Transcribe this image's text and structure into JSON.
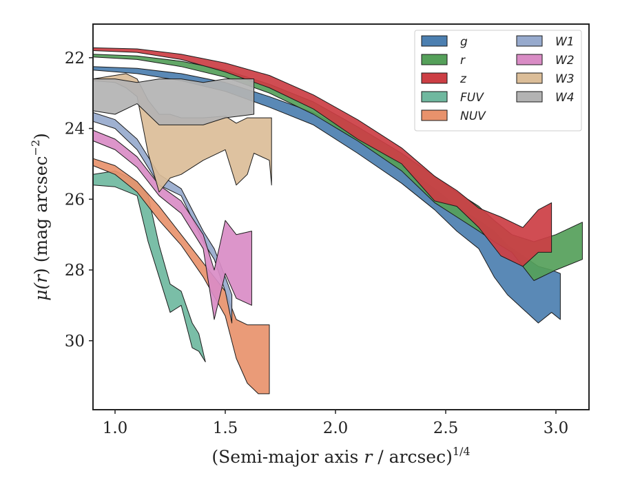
{
  "chart_data": {
    "type": "area",
    "title": "",
    "xlabel_main": "(Semi-major axis ",
    "xlabel_var": "r",
    "xlabel_tail": " / arcsec)",
    "xlabel_exp": "1/4",
    "ylabel_mu": "μ(",
    "ylabel_var": "r",
    "ylabel_rest": ") (mag arcsec",
    "ylabel_exp": "−2",
    "ylabel_close": ")",
    "xlim": [
      0.9,
      3.15
    ],
    "ylim": [
      31.95,
      21.05
    ],
    "y_inverted": true,
    "xticks": [
      1.0,
      1.5,
      2.0,
      2.5,
      3.0
    ],
    "xtick_labels": [
      "1.0",
      "1.5",
      "2.0",
      "2.5",
      "3.0"
    ],
    "yticks": [
      22,
      24,
      26,
      28,
      30
    ],
    "ytick_labels": [
      "22",
      "24",
      "26",
      "28",
      "30"
    ],
    "grid": false,
    "legend_position": "top-right",
    "legend_columns": 2,
    "series": [
      {
        "name": "g",
        "color": "#4c7fb0",
        "x": [
          0.9,
          1.1,
          1.3,
          1.5,
          1.7,
          1.9,
          2.1,
          2.3,
          2.45,
          2.55,
          2.65,
          2.72,
          2.78,
          2.85,
          2.92,
          2.98,
          3.02
        ],
        "lo": [
          22.25,
          22.3,
          22.45,
          22.7,
          23.1,
          23.55,
          24.25,
          25.05,
          25.7,
          26.2,
          26.6,
          26.9,
          27.3,
          27.6,
          27.9,
          28.0,
          28.1
        ],
        "hi": [
          22.35,
          22.45,
          22.65,
          22.95,
          23.4,
          23.9,
          24.7,
          25.55,
          26.3,
          26.9,
          27.4,
          28.2,
          28.7,
          29.1,
          29.5,
          29.2,
          29.4
        ]
      },
      {
        "name": "r",
        "color": "#55a05a",
        "x": [
          0.9,
          1.1,
          1.3,
          1.5,
          1.7,
          1.9,
          2.1,
          2.3,
          2.45,
          2.55,
          2.65,
          2.72,
          2.8,
          2.9,
          3.0,
          3.12
        ],
        "lo": [
          21.9,
          21.95,
          22.1,
          22.35,
          22.75,
          23.25,
          23.95,
          24.7,
          25.35,
          25.8,
          26.2,
          26.6,
          27.0,
          27.2,
          27.0,
          26.65
        ],
        "hi": [
          21.98,
          22.05,
          22.25,
          22.55,
          23.0,
          23.6,
          24.35,
          25.2,
          26.1,
          26.5,
          26.9,
          27.2,
          27.5,
          28.3,
          28.0,
          27.7
        ]
      },
      {
        "name": "z",
        "color": "#cc3e44",
        "x": [
          0.9,
          1.1,
          1.3,
          1.5,
          1.7,
          1.9,
          2.1,
          2.3,
          2.45,
          2.55,
          2.65,
          2.75,
          2.85,
          2.92,
          2.98
        ],
        "lo": [
          21.72,
          21.75,
          21.9,
          22.15,
          22.5,
          23.05,
          23.75,
          24.55,
          25.35,
          25.75,
          26.25,
          26.5,
          26.8,
          26.3,
          26.1
        ],
        "hi": [
          21.8,
          21.85,
          22.05,
          22.4,
          22.85,
          23.45,
          24.3,
          25.0,
          26.05,
          26.2,
          26.8,
          27.6,
          27.9,
          27.5,
          27.5
        ]
      },
      {
        "name": "FUV",
        "color": "#6fb89f",
        "x": [
          0.9,
          1.0,
          1.1,
          1.15,
          1.2,
          1.25,
          1.3,
          1.35,
          1.38,
          1.41
        ],
        "lo": [
          25.3,
          25.2,
          25.5,
          25.9,
          27.3,
          28.4,
          28.6,
          29.5,
          29.8,
          30.6
        ],
        "hi": [
          25.6,
          25.65,
          25.9,
          27.2,
          28.2,
          29.2,
          29.0,
          30.2,
          30.3,
          30.6
        ]
      },
      {
        "name": "NUV",
        "color": "#e8926c",
        "x": [
          0.9,
          1.0,
          1.1,
          1.2,
          1.3,
          1.4,
          1.5,
          1.55,
          1.6,
          1.65,
          1.7
        ],
        "lo": [
          24.85,
          25.05,
          25.5,
          26.2,
          27.0,
          27.8,
          28.6,
          29.4,
          29.55,
          29.55,
          29.55
        ],
        "hi": [
          25.05,
          25.3,
          25.8,
          26.6,
          27.3,
          28.2,
          29.3,
          30.5,
          31.2,
          31.5,
          31.5
        ]
      },
      {
        "name": "W1",
        "color": "#97aacd",
        "x": [
          0.9,
          1.0,
          1.1,
          1.2,
          1.3,
          1.4,
          1.45,
          1.5,
          1.53
        ],
        "lo": [
          23.55,
          23.75,
          24.3,
          25.3,
          25.7,
          26.9,
          27.4,
          28.2,
          28.7
        ],
        "hi": [
          23.8,
          24.0,
          24.6,
          25.6,
          25.9,
          27.2,
          27.7,
          28.6,
          29.5
        ]
      },
      {
        "name": "W2",
        "color": "#d98cc5",
        "x": [
          0.9,
          1.0,
          1.1,
          1.2,
          1.3,
          1.4,
          1.45,
          1.5,
          1.55,
          1.62
        ],
        "lo": [
          24.05,
          24.3,
          24.8,
          25.6,
          26.05,
          27.0,
          28.0,
          26.6,
          27.0,
          26.9
        ],
        "hi": [
          24.35,
          24.6,
          25.1,
          25.9,
          26.4,
          27.4,
          29.4,
          28.1,
          28.8,
          29.0
        ]
      },
      {
        "name": "W3",
        "color": "#dbbd98",
        "x": [
          0.9,
          1.0,
          1.05,
          1.1,
          1.15,
          1.2,
          1.25,
          1.3,
          1.4,
          1.5,
          1.55,
          1.6,
          1.63,
          1.7,
          1.71
        ],
        "lo": [
          22.6,
          22.5,
          22.45,
          22.6,
          23.2,
          23.6,
          23.6,
          23.7,
          23.7,
          23.65,
          23.85,
          23.7,
          23.7,
          23.7,
          23.7
        ],
        "hi": [
          22.65,
          22.7,
          22.85,
          23.1,
          24.7,
          25.8,
          25.4,
          25.3,
          24.9,
          24.6,
          25.6,
          25.3,
          24.7,
          24.9,
          25.6
        ]
      },
      {
        "name": "W4",
        "color": "#b3b3b3",
        "x": [
          0.9,
          1.0,
          1.1,
          1.2,
          1.3,
          1.4,
          1.5,
          1.63
        ],
        "lo": [
          22.6,
          22.6,
          22.7,
          22.6,
          22.6,
          22.7,
          22.6,
          22.6
        ],
        "hi": [
          23.5,
          23.6,
          23.3,
          23.9,
          23.9,
          23.9,
          23.7,
          23.6
        ]
      }
    ]
  }
}
